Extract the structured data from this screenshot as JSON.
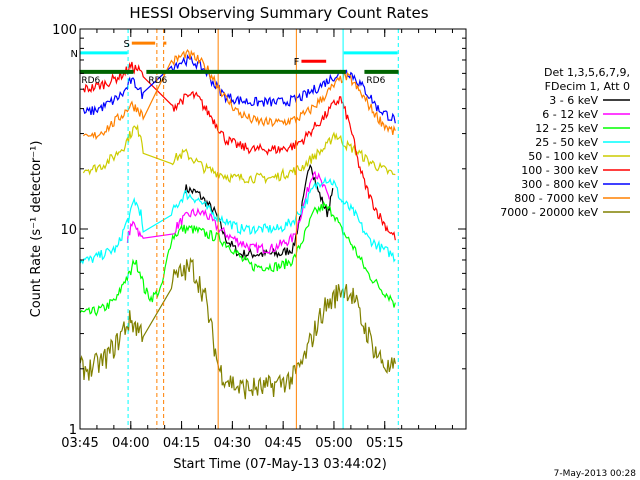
{
  "chart_data": {
    "type": "line",
    "title": "HESSI Observing Summary Count Rates",
    "xlabel": "Start Time (07-May-13 03:44:02)",
    "ylabel": "Count Rate (s⁻¹ detector⁻¹)",
    "footer": "7-May-2013 00:28",
    "y_scale": "log",
    "ylim": [
      1,
      100
    ],
    "y_tick_labels": [
      "1",
      "10",
      "100"
    ],
    "xlim": [
      225,
      339
    ],
    "x_ticks": [
      {
        "t": 225,
        "label": "03:45"
      },
      {
        "t": 240,
        "label": "04:00"
      },
      {
        "t": 255,
        "label": "04:15"
      },
      {
        "t": 270,
        "label": "04:30"
      },
      {
        "t": 285,
        "label": "04:45"
      },
      {
        "t": 300,
        "label": "05:00"
      },
      {
        "t": 315,
        "label": "05:15"
      }
    ],
    "legend": {
      "placement": "right",
      "header": [
        "Det 1,3,5,6,7,9,",
        "FDecim 1, Att 0"
      ],
      "entries": [
        {
          "label": "3 - 6 keV",
          "color": "#000000"
        },
        {
          "label": "6 - 12 keV",
          "color": "#ff00ff"
        },
        {
          "label": "12 - 25 keV",
          "color": "#00ff00"
        },
        {
          "label": "25 - 50 keV",
          "color": "#00ffff"
        },
        {
          "label": "50 - 100 keV",
          "color": "#cccc00"
        },
        {
          "label": "100 - 300 keV",
          "color": "#ff0000"
        },
        {
          "label": "300 - 800 keV",
          "color": "#0000ff"
        },
        {
          "label": "800 - 7000 keV",
          "color": "#ff8000"
        },
        {
          "label": "7000 - 20000 keV",
          "color": "#808000"
        }
      ]
    },
    "series": [
      {
        "name": "3 - 6 keV",
        "color": "#000000",
        "points": [
          [
            256,
            16
          ],
          [
            260,
            15
          ],
          [
            265,
            12
          ],
          [
            268,
            9
          ],
          [
            272,
            7.5
          ],
          [
            276,
            7.5
          ],
          [
            280,
            7.5
          ],
          [
            284,
            7.5
          ],
          [
            288,
            8
          ],
          [
            291,
            14
          ],
          [
            293,
            22
          ],
          [
            295,
            16
          ],
          [
            298,
            12
          ],
          [
            300,
            16
          ]
        ]
      },
      {
        "name": "6 - 12 keV",
        "color": "#ff00ff",
        "points": [
          [
            239,
            9
          ],
          [
            240,
            10
          ],
          [
            241,
            11
          ],
          [
            242,
            10
          ],
          [
            243,
            9
          ],
          [
            244,
            9
          ],
          [
            253,
            10
          ],
          [
            255,
            11
          ],
          [
            258,
            12
          ],
          [
            262,
            12
          ],
          [
            266,
            10
          ],
          [
            270,
            9
          ],
          [
            276,
            8
          ],
          [
            282,
            8
          ],
          [
            288,
            9
          ],
          [
            291,
            13
          ],
          [
            294,
            20
          ],
          [
            297,
            16
          ],
          [
            299,
            14
          ]
        ]
      },
      {
        "name": "12 - 25 keV",
        "color": "#00ff00",
        "points": [
          [
            224,
            3.8
          ],
          [
            228,
            3.8
          ],
          [
            232,
            4
          ],
          [
            236,
            4.5
          ],
          [
            238,
            5.5
          ],
          [
            240,
            6
          ],
          [
            241,
            7
          ],
          [
            242,
            6.5
          ],
          [
            243,
            6
          ],
          [
            244,
            5
          ],
          [
            246,
            4.5
          ],
          [
            249,
            5
          ],
          [
            252,
            9
          ],
          [
            255,
            10
          ],
          [
            258,
            10
          ],
          [
            262,
            9.5
          ],
          [
            266,
            9
          ],
          [
            270,
            8
          ],
          [
            273,
            7
          ],
          [
            276,
            6.5
          ],
          [
            280,
            6.5
          ],
          [
            284,
            6.5
          ],
          [
            288,
            7
          ],
          [
            291,
            9
          ],
          [
            294,
            12
          ],
          [
            297,
            13
          ],
          [
            300,
            12
          ],
          [
            302,
            10
          ],
          [
            304,
            9
          ],
          [
            306,
            8
          ],
          [
            310,
            6
          ],
          [
            314,
            5
          ],
          [
            317,
            4.5
          ],
          [
            318.5,
            4
          ]
        ]
      },
      {
        "name": "25 - 50 keV",
        "color": "#00ffff",
        "points": [
          [
            224,
            7
          ],
          [
            228,
            7
          ],
          [
            232,
            7.5
          ],
          [
            236,
            8
          ],
          [
            238,
            10
          ],
          [
            240,
            12
          ],
          [
            241,
            14
          ],
          [
            242,
            13
          ],
          [
            243,
            12
          ],
          [
            244,
            8
          ],
          [
            248,
            8
          ],
          [
            252,
            12
          ],
          [
            256,
            15
          ],
          [
            260,
            14
          ],
          [
            264,
            12
          ],
          [
            268,
            11
          ],
          [
            272,
            10
          ],
          [
            276,
            10
          ],
          [
            280,
            10
          ],
          [
            284,
            10
          ],
          [
            288,
            11
          ],
          [
            291,
            13
          ],
          [
            294,
            16
          ],
          [
            297,
            18
          ],
          [
            300,
            17
          ],
          [
            302,
            14
          ],
          [
            304,
            13
          ],
          [
            306,
            12
          ],
          [
            310,
            9
          ],
          [
            314,
            8
          ],
          [
            317,
            7.5
          ],
          [
            318.5,
            7
          ]
        ]
      },
      {
        "name": "50 - 100 keV",
        "color": "#cccc00",
        "points": [
          [
            226,
            20
          ],
          [
            229,
            20
          ],
          [
            232,
            21
          ],
          [
            235,
            23
          ],
          [
            238,
            26
          ],
          [
            240,
            30
          ],
          [
            241,
            32
          ],
          [
            242,
            31
          ],
          [
            243,
            30
          ],
          [
            244,
            22
          ],
          [
            248,
            19
          ],
          [
            252,
            22
          ],
          [
            256,
            24
          ],
          [
            259,
            22
          ],
          [
            262,
            20
          ],
          [
            266,
            19
          ],
          [
            270,
            18
          ],
          [
            274,
            18
          ],
          [
            278,
            18
          ],
          [
            282,
            18
          ],
          [
            286,
            19
          ],
          [
            290,
            20
          ],
          [
            294,
            23
          ],
          [
            298,
            26
          ],
          [
            300,
            30
          ],
          [
            302,
            28
          ],
          [
            304,
            26
          ],
          [
            306,
            25
          ],
          [
            310,
            22
          ],
          [
            314,
            20
          ],
          [
            317,
            19
          ],
          [
            318.5,
            18
          ]
        ]
      },
      {
        "name": "100 - 300 keV",
        "color": "#ff0000",
        "points": [
          [
            226,
            50
          ],
          [
            229,
            51
          ],
          [
            232,
            53
          ],
          [
            235,
            56
          ],
          [
            238,
            60
          ],
          [
            240,
            65
          ],
          [
            242,
            63
          ],
          [
            244,
            58
          ],
          [
            248,
            36
          ],
          [
            252,
            40
          ],
          [
            255,
            44
          ],
          [
            258,
            47
          ],
          [
            260,
            45
          ],
          [
            262,
            40
          ],
          [
            264,
            36
          ],
          [
            266,
            32
          ],
          [
            268,
            28
          ],
          [
            272,
            26
          ],
          [
            276,
            25
          ],
          [
            280,
            25
          ],
          [
            284,
            25
          ],
          [
            288,
            26
          ],
          [
            291,
            28
          ],
          [
            294,
            32
          ],
          [
            297,
            36
          ],
          [
            300,
            42
          ],
          [
            302,
            45
          ],
          [
            303,
            40
          ],
          [
            305,
            32
          ],
          [
            307,
            22
          ],
          [
            309,
            17
          ],
          [
            311,
            14
          ],
          [
            313,
            12
          ],
          [
            315,
            10.5
          ],
          [
            317,
            9.5
          ],
          [
            318.5,
            9
          ]
        ]
      },
      {
        "name": "300 - 800 keV",
        "color": "#0000ff",
        "points": [
          [
            226,
            38
          ],
          [
            229,
            39
          ],
          [
            232,
            41
          ],
          [
            235,
            44
          ],
          [
            238,
            48
          ],
          [
            240,
            55
          ],
          [
            242,
            52
          ],
          [
            244,
            45
          ],
          [
            248,
            55
          ],
          [
            252,
            65
          ],
          [
            256,
            70
          ],
          [
            259,
            68
          ],
          [
            262,
            62
          ],
          [
            265,
            52
          ],
          [
            268,
            46
          ],
          [
            272,
            44
          ],
          [
            276,
            43
          ],
          [
            280,
            43
          ],
          [
            284,
            43
          ],
          [
            288,
            44
          ],
          [
            292,
            47
          ],
          [
            296,
            52
          ],
          [
            300,
            58
          ],
          [
            303,
            62
          ],
          [
            305,
            60
          ],
          [
            307,
            55
          ],
          [
            309,
            50
          ],
          [
            311,
            45
          ],
          [
            313,
            40
          ],
          [
            315,
            38
          ],
          [
            317,
            36
          ],
          [
            318.5,
            35
          ]
        ]
      },
      {
        "name": "800 - 7000 keV",
        "color": "#ff8000",
        "points": [
          [
            226,
            28
          ],
          [
            229,
            29
          ],
          [
            232,
            31
          ],
          [
            235,
            34
          ],
          [
            238,
            38
          ],
          [
            240,
            42
          ],
          [
            242,
            40
          ],
          [
            244,
            36
          ],
          [
            248,
            55
          ],
          [
            252,
            68
          ],
          [
            256,
            75
          ],
          [
            259,
            72
          ],
          [
            262,
            65
          ],
          [
            265,
            55
          ],
          [
            268,
            45
          ],
          [
            272,
            38
          ],
          [
            276,
            35
          ],
          [
            280,
            34
          ],
          [
            284,
            34
          ],
          [
            288,
            35
          ],
          [
            292,
            38
          ],
          [
            296,
            44
          ],
          [
            300,
            52
          ],
          [
            303,
            58
          ],
          [
            305,
            56
          ],
          [
            307,
            50
          ],
          [
            309,
            45
          ],
          [
            311,
            40
          ],
          [
            313,
            36
          ],
          [
            315,
            33
          ],
          [
            317,
            31
          ],
          [
            318.5,
            30
          ]
        ]
      },
      {
        "name": "7000 - 20000 keV",
        "color": "#808000",
        "points": [
          [
            224,
            2
          ],
          [
            228,
            2
          ],
          [
            232,
            2.2
          ],
          [
            236,
            2.7
          ],
          [
            238,
            3.2
          ],
          [
            240,
            3.5
          ],
          [
            242,
            3.2
          ],
          [
            244,
            3
          ],
          [
            248,
            4
          ],
          [
            252,
            5.5
          ],
          [
            255,
            6
          ],
          [
            258,
            6.5
          ],
          [
            260,
            5.5
          ],
          [
            262,
            4.5
          ],
          [
            264,
            3
          ],
          [
            266,
            2
          ],
          [
            268,
            1.8
          ],
          [
            272,
            1.6
          ],
          [
            276,
            1.6
          ],
          [
            280,
            1.6
          ],
          [
            284,
            1.7
          ],
          [
            288,
            1.8
          ],
          [
            291,
            2.2
          ],
          [
            294,
            3
          ],
          [
            297,
            4
          ],
          [
            300,
            4.5
          ],
          [
            302,
            5
          ],
          [
            304,
            5
          ],
          [
            306,
            4.5
          ],
          [
            308,
            3.5
          ],
          [
            310,
            3
          ],
          [
            312,
            2.5
          ],
          [
            314,
            2.2
          ],
          [
            316,
            2
          ],
          [
            318.5,
            2
          ]
        ]
      }
    ],
    "markers": {
      "vertical_lines": [
        {
          "t": 239.2,
          "color": "#00ffff",
          "style": "dashed"
        },
        {
          "t": 247.7,
          "color": "#ff8000",
          "style": "dashed"
        },
        {
          "t": 249.7,
          "color": "#ff8000",
          "style": "dashed"
        },
        {
          "t": 265.8,
          "color": "#ff8000",
          "style": "solid"
        },
        {
          "t": 288.9,
          "color": "#ff8000",
          "style": "solid"
        },
        {
          "t": 302.7,
          "color": "#00ffff",
          "style": "solid"
        },
        {
          "t": 319.0,
          "color": "#00ffff",
          "style": "dashed"
        }
      ],
      "saa": [
        {
          "label": "S",
          "t0": 240.3,
          "t1": 247.2,
          "y": 85,
          "color": "#ff8000"
        },
        {
          "t0": 249.6,
          "t1": 250.5,
          "y": 85,
          "color": "#ff8000"
        }
      ],
      "night": [
        {
          "label": "N",
          "t0": 225,
          "t1": 239.0,
          "y": 76,
          "color": "#00ffff"
        },
        {
          "t0": 302.9,
          "t1": 318.8,
          "y": 76,
          "color": "#00ffff"
        }
      ],
      "flare": [
        {
          "label": "F",
          "t0": 290.4,
          "t1": 297.7,
          "y": 69,
          "color": "#ff0000"
        }
      ],
      "decimation": [
        {
          "label": "RD6",
          "t0": 224.8,
          "t1": 240.8,
          "y": 61,
          "color": "#006400"
        },
        {
          "label": "RD6",
          "t0": 244.6,
          "t1": 303.5,
          "y": 61,
          "color": "#006400"
        },
        {
          "label": "RD6",
          "t0": 309.0,
          "t1": 319.1,
          "y": 61,
          "color": "#006400"
        }
      ]
    }
  }
}
